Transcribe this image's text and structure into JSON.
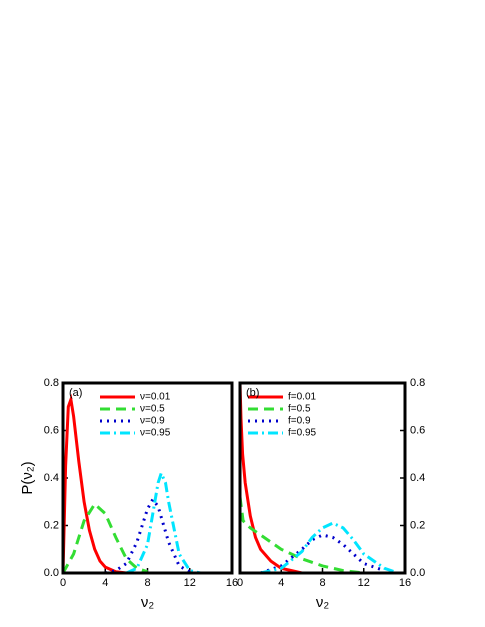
{
  "chart_data": [
    {
      "type": "line",
      "panel_label": "(a)",
      "ylabel": "P(ν₂)",
      "xlabel": "ν₂",
      "yaxis_side": "left",
      "xlim": [
        0,
        16
      ],
      "xticks": [
        0,
        4,
        8,
        12,
        16
      ],
      "ylim": [
        0,
        0.8
      ],
      "yticks": [
        {
          "value": 0,
          "label": "0.0"
        },
        0.2,
        0.4,
        0.6,
        0.8
      ],
      "series": [
        {
          "name": "ν=0.01",
          "color": "#ff0000",
          "style": "solid",
          "x": [
            0,
            0.25,
            0.5,
            0.75,
            1,
            1.5,
            2,
            2.5,
            3,
            3.5,
            4,
            5,
            6,
            8
          ],
          "values": [
            0,
            0.45,
            0.7,
            0.73,
            0.66,
            0.47,
            0.3,
            0.18,
            0.1,
            0.05,
            0.025,
            0.005,
            0,
            0
          ]
        },
        {
          "name": "ν=0.5",
          "color": "#33dd33",
          "style": "dash",
          "x": [
            0,
            1,
            2,
            3,
            4,
            5,
            6,
            7,
            8
          ],
          "values": [
            0,
            0.08,
            0.22,
            0.29,
            0.25,
            0.15,
            0.06,
            0.02,
            0.005
          ]
        },
        {
          "name": "ν=0.9",
          "color": "#0000cc",
          "style": "dot",
          "x": [
            4,
            5,
            6,
            7,
            8,
            8.5,
            9,
            10,
            11,
            12
          ],
          "values": [
            0,
            0.01,
            0.04,
            0.13,
            0.27,
            0.31,
            0.28,
            0.13,
            0.03,
            0.005
          ]
        },
        {
          "name": "ν=0.95",
          "color": "#00e5ff",
          "style": "dashdot",
          "x": [
            6,
            7,
            8,
            8.5,
            9,
            9.3,
            9.7,
            10,
            11,
            12,
            13
          ],
          "values": [
            0,
            0.02,
            0.12,
            0.25,
            0.38,
            0.42,
            0.38,
            0.3,
            0.08,
            0.01,
            0
          ]
        }
      ]
    },
    {
      "type": "line",
      "panel_label": "(b)",
      "xlabel": "ν₂",
      "yaxis_side": "right",
      "xlim": [
        0,
        16
      ],
      "xticks": [
        0,
        4,
        8,
        12,
        16
      ],
      "ylim": [
        0,
        0.8
      ],
      "yticks": [
        {
          "value": 0,
          "label": "0.0"
        },
        0.2,
        0.4,
        0.6,
        0.8
      ],
      "series": [
        {
          "name": "f=0.01",
          "color": "#ff0000",
          "style": "solid",
          "x": [
            0,
            0.1,
            0.25,
            0.5,
            1,
            1.5,
            2,
            3,
            4,
            5,
            6
          ],
          "values": [
            0.8,
            0.65,
            0.5,
            0.38,
            0.24,
            0.15,
            0.1,
            0.05,
            0.02,
            0.01,
            0
          ]
        },
        {
          "name": "f=0.5",
          "color": "#33dd33",
          "style": "dash",
          "x": [
            0,
            0.3,
            1,
            2,
            4,
            6,
            8,
            10,
            12
          ],
          "values": [
            0.32,
            0.22,
            0.19,
            0.16,
            0.1,
            0.06,
            0.03,
            0.01,
            0
          ]
        },
        {
          "name": "f=0.9",
          "color": "#0000cc",
          "style": "dot",
          "x": [
            2,
            4,
            6,
            7,
            8,
            9,
            10,
            12,
            14
          ],
          "values": [
            0,
            0.03,
            0.1,
            0.14,
            0.16,
            0.15,
            0.12,
            0.04,
            0.01
          ]
        },
        {
          "name": "f=0.95",
          "color": "#00e5ff",
          "style": "dashdot",
          "x": [
            2,
            4,
            6,
            7,
            8,
            9,
            10,
            11,
            12,
            14,
            15
          ],
          "values": [
            0,
            0.02,
            0.09,
            0.15,
            0.19,
            0.21,
            0.19,
            0.14,
            0.08,
            0.02,
            0.005
          ]
        }
      ]
    }
  ]
}
